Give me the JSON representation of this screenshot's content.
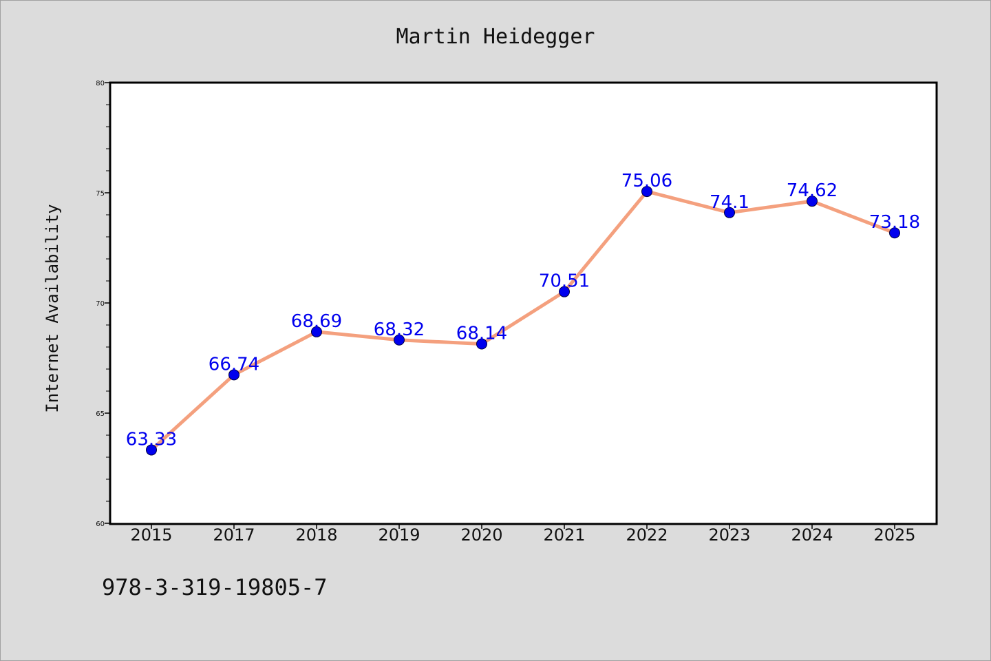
{
  "chart_data": {
    "type": "line",
    "title": "Martin Heidegger",
    "xlabel": "",
    "ylabel": "Internet Availability",
    "categories": [
      "2015",
      "2017",
      "2018",
      "2019",
      "2020",
      "2021",
      "2022",
      "2023",
      "2024",
      "2025"
    ],
    "series": [
      {
        "values": [
          63.33,
          66.74,
          68.69,
          68.32,
          68.14,
          70.51,
          75.06,
          74.1,
          74.62,
          73.18
        ],
        "labels": [
          "63.33",
          "66.74",
          "68.69",
          "68.32",
          "68.14",
          "70.51",
          "75.06",
          "74.1",
          "74.62",
          "73.18"
        ],
        "line_color": "#f4a07e",
        "marker_color": "#0000ee"
      }
    ],
    "ylim": [
      60,
      80
    ],
    "yticks": [
      60,
      65,
      70,
      75,
      80
    ],
    "grid": false,
    "legend": "none",
    "footer_text": "978-3-319-19805-7"
  }
}
